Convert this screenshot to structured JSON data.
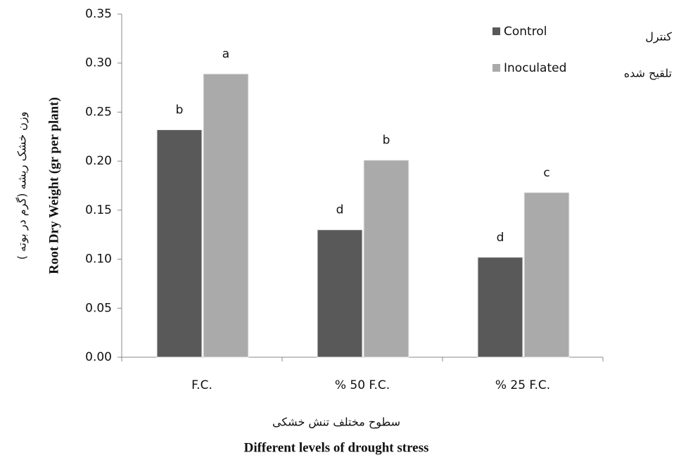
{
  "chart_data": {
    "type": "bar",
    "y_label": "Root Dry Weight (gr per plant)",
    "y_label_fa": "وزن خشک ریشه (گرم در بوته )",
    "x_label": "Different levels of drought stress",
    "x_label_fa": "سطوح مختلف تنش خشکی",
    "categories": [
      "F.C.",
      "% 50 F.C.",
      "% 25 F.C."
    ],
    "series": [
      {
        "name": "Control",
        "name_fa": "کنترل",
        "color": "#595959",
        "values": [
          0.232,
          0.13,
          0.102
        ],
        "letters": [
          "b",
          "d",
          "d"
        ]
      },
      {
        "name": "Inoculated",
        "name_fa": "تلقیح شده",
        "color": "#aaaaaa",
        "values": [
          0.289,
          0.201,
          0.168
        ],
        "letters": [
          "a",
          "b",
          "c"
        ]
      }
    ],
    "ylim": [
      0,
      0.35
    ],
    "yticks": [
      {
        "value": 0,
        "label": "0.00"
      },
      {
        "value": 0.05,
        "label": "0.05"
      },
      {
        "value": 0.1,
        "label": "0.10"
      },
      {
        "value": 0.15,
        "label": "0.15"
      },
      {
        "value": 0.2,
        "label": "0.20"
      },
      {
        "value": 0.25,
        "label": "0.25"
      },
      {
        "value": 0.3,
        "label": "0.30"
      },
      {
        "value": 0.35,
        "label": "0.35"
      }
    ],
    "grid": false,
    "legend": "upper right"
  }
}
